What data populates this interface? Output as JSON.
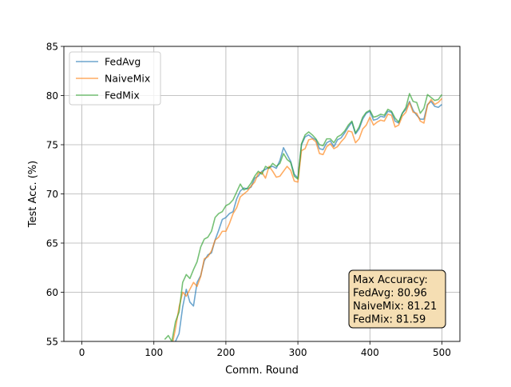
{
  "chart_data": {
    "type": "line",
    "title": "",
    "xlabel": "Comm. Round",
    "ylabel": "Test Acc. (%)",
    "xlim": [
      -25,
      525
    ],
    "ylim": [
      55,
      85
    ],
    "xticks": [
      0,
      100,
      200,
      300,
      400,
      500
    ],
    "yticks": [
      55,
      60,
      65,
      70,
      75,
      80,
      85
    ],
    "grid": true,
    "legend_position": "upper-left",
    "series": [
      {
        "name": "FedAvg",
        "color": "#1f77b4",
        "points": [
          [
            125,
            53.5
          ],
          [
            130,
            55.0
          ],
          [
            135,
            55.8
          ],
          [
            140,
            58.5
          ],
          [
            145,
            60.3
          ],
          [
            150,
            59.0
          ],
          [
            155,
            58.6
          ],
          [
            160,
            61.0
          ],
          [
            165,
            61.7
          ],
          [
            170,
            63.2
          ],
          [
            175,
            63.8
          ],
          [
            180,
            64.0
          ],
          [
            185,
            65.3
          ],
          [
            190,
            66.3
          ],
          [
            195,
            67.4
          ],
          [
            200,
            67.6
          ],
          [
            205,
            68.0
          ],
          [
            210,
            68.2
          ],
          [
            215,
            69.5
          ],
          [
            220,
            70.3
          ],
          [
            225,
            70.6
          ],
          [
            230,
            70.5
          ],
          [
            235,
            70.7
          ],
          [
            240,
            71.6
          ],
          [
            245,
            71.8
          ],
          [
            250,
            72.3
          ],
          [
            255,
            72.5
          ],
          [
            260,
            72.7
          ],
          [
            265,
            72.8
          ],
          [
            270,
            72.6
          ],
          [
            275,
            73.4
          ],
          [
            280,
            74.7
          ],
          [
            285,
            74.0
          ],
          [
            290,
            73.3
          ],
          [
            295,
            72.0
          ],
          [
            300,
            71.6
          ],
          [
            305,
            75.0
          ],
          [
            310,
            75.8
          ],
          [
            315,
            76.0
          ],
          [
            320,
            75.7
          ],
          [
            325,
            75.5
          ],
          [
            330,
            74.6
          ],
          [
            335,
            74.5
          ],
          [
            340,
            75.2
          ],
          [
            345,
            75.4
          ],
          [
            350,
            74.8
          ],
          [
            355,
            75.5
          ],
          [
            360,
            75.7
          ],
          [
            365,
            76.2
          ],
          [
            370,
            76.8
          ],
          [
            375,
            77.3
          ],
          [
            380,
            76.1
          ],
          [
            385,
            76.6
          ],
          [
            390,
            77.6
          ],
          [
            395,
            78.2
          ],
          [
            400,
            78.4
          ],
          [
            405,
            77.5
          ],
          [
            410,
            77.6
          ],
          [
            415,
            77.9
          ],
          [
            420,
            77.8
          ],
          [
            425,
            78.4
          ],
          [
            430,
            78.3
          ],
          [
            435,
            77.4
          ],
          [
            440,
            77.2
          ],
          [
            445,
            78.2
          ],
          [
            450,
            78.6
          ],
          [
            455,
            79.4
          ],
          [
            460,
            78.5
          ],
          [
            465,
            78.0
          ],
          [
            470,
            77.6
          ],
          [
            475,
            77.6
          ],
          [
            480,
            79.1
          ],
          [
            485,
            79.4
          ],
          [
            490,
            78.9
          ],
          [
            495,
            78.8
          ],
          [
            500,
            79.1
          ]
        ]
      },
      {
        "name": "NaiveMix",
        "color": "#ff7f0e",
        "points": [
          [
            125,
            54.5
          ],
          [
            130,
            56.3
          ],
          [
            135,
            58.5
          ],
          [
            140,
            60.0
          ],
          [
            145,
            59.6
          ],
          [
            150,
            60.3
          ],
          [
            155,
            61.0
          ],
          [
            160,
            60.6
          ],
          [
            165,
            61.6
          ],
          [
            170,
            63.4
          ],
          [
            175,
            63.6
          ],
          [
            180,
            64.2
          ],
          [
            185,
            65.3
          ],
          [
            190,
            65.6
          ],
          [
            195,
            66.2
          ],
          [
            200,
            66.2
          ],
          [
            205,
            67.0
          ],
          [
            210,
            68.0
          ],
          [
            215,
            68.6
          ],
          [
            220,
            69.7
          ],
          [
            225,
            70.0
          ],
          [
            230,
            70.3
          ],
          [
            235,
            70.8
          ],
          [
            240,
            71.2
          ],
          [
            245,
            72.1
          ],
          [
            250,
            72.2
          ],
          [
            255,
            71.6
          ],
          [
            260,
            72.8
          ],
          [
            265,
            72.3
          ],
          [
            270,
            71.7
          ],
          [
            275,
            71.8
          ],
          [
            280,
            72.3
          ],
          [
            285,
            72.8
          ],
          [
            290,
            72.4
          ],
          [
            295,
            71.3
          ],
          [
            300,
            71.2
          ],
          [
            305,
            74.4
          ],
          [
            310,
            74.6
          ],
          [
            315,
            75.5
          ],
          [
            320,
            75.6
          ],
          [
            325,
            75.3
          ],
          [
            330,
            74.1
          ],
          [
            335,
            74.0
          ],
          [
            340,
            74.8
          ],
          [
            345,
            75.1
          ],
          [
            350,
            74.6
          ],
          [
            355,
            74.8
          ],
          [
            360,
            75.3
          ],
          [
            365,
            75.7
          ],
          [
            370,
            76.4
          ],
          [
            375,
            76.3
          ],
          [
            380,
            75.2
          ],
          [
            385,
            75.6
          ],
          [
            390,
            76.6
          ],
          [
            395,
            77.0
          ],
          [
            400,
            77.8
          ],
          [
            405,
            77.0
          ],
          [
            410,
            77.3
          ],
          [
            415,
            77.5
          ],
          [
            420,
            77.4
          ],
          [
            425,
            78.1
          ],
          [
            430,
            78.0
          ],
          [
            435,
            76.8
          ],
          [
            440,
            77.0
          ],
          [
            445,
            77.9
          ],
          [
            450,
            78.3
          ],
          [
            455,
            79.3
          ],
          [
            460,
            78.3
          ],
          [
            465,
            78.2
          ],
          [
            470,
            77.4
          ],
          [
            475,
            77.2
          ],
          [
            480,
            79.0
          ],
          [
            485,
            79.6
          ],
          [
            490,
            79.1
          ],
          [
            495,
            79.3
          ],
          [
            500,
            79.7
          ]
        ]
      },
      {
        "name": "FedMix",
        "color": "#2ca02c",
        "points": [
          [
            115,
            55.2
          ],
          [
            120,
            55.6
          ],
          [
            125,
            55.0
          ],
          [
            130,
            57.0
          ],
          [
            135,
            58.0
          ],
          [
            140,
            61.0
          ],
          [
            145,
            61.8
          ],
          [
            150,
            61.4
          ],
          [
            155,
            62.3
          ],
          [
            160,
            63.1
          ],
          [
            165,
            64.6
          ],
          [
            170,
            65.4
          ],
          [
            175,
            65.6
          ],
          [
            180,
            66.2
          ],
          [
            185,
            67.6
          ],
          [
            190,
            68.0
          ],
          [
            195,
            68.2
          ],
          [
            200,
            68.8
          ],
          [
            205,
            69.0
          ],
          [
            210,
            69.4
          ],
          [
            215,
            70.2
          ],
          [
            220,
            71.0
          ],
          [
            225,
            70.4
          ],
          [
            230,
            70.6
          ],
          [
            235,
            71.1
          ],
          [
            240,
            71.8
          ],
          [
            245,
            72.3
          ],
          [
            250,
            72.0
          ],
          [
            255,
            72.8
          ],
          [
            260,
            72.6
          ],
          [
            265,
            73.1
          ],
          [
            270,
            72.8
          ],
          [
            275,
            73.1
          ],
          [
            280,
            74.1
          ],
          [
            285,
            73.5
          ],
          [
            290,
            73.2
          ],
          [
            295,
            71.8
          ],
          [
            300,
            71.5
          ],
          [
            305,
            75.1
          ],
          [
            310,
            76.0
          ],
          [
            315,
            76.3
          ],
          [
            320,
            76.0
          ],
          [
            325,
            75.6
          ],
          [
            330,
            75.0
          ],
          [
            335,
            74.9
          ],
          [
            340,
            75.6
          ],
          [
            345,
            75.6
          ],
          [
            350,
            75.2
          ],
          [
            355,
            75.8
          ],
          [
            360,
            76.0
          ],
          [
            365,
            76.4
          ],
          [
            370,
            77.0
          ],
          [
            375,
            77.4
          ],
          [
            380,
            76.2
          ],
          [
            385,
            76.8
          ],
          [
            390,
            77.8
          ],
          [
            395,
            78.3
          ],
          [
            400,
            78.5
          ],
          [
            405,
            77.8
          ],
          [
            410,
            77.9
          ],
          [
            415,
            78.1
          ],
          [
            420,
            78.0
          ],
          [
            425,
            78.6
          ],
          [
            430,
            78.4
          ],
          [
            435,
            77.7
          ],
          [
            440,
            77.3
          ],
          [
            445,
            78.2
          ],
          [
            450,
            78.8
          ],
          [
            455,
            80.2
          ],
          [
            460,
            79.4
          ],
          [
            465,
            79.3
          ],
          [
            470,
            78.2
          ],
          [
            475,
            78.7
          ],
          [
            480,
            80.1
          ],
          [
            485,
            79.8
          ],
          [
            490,
            79.5
          ],
          [
            495,
            79.6
          ],
          [
            500,
            80.1
          ]
        ]
      }
    ],
    "annotation": {
      "lines": [
        "Max Accuracy:",
        "FedAvg: 80.96",
        "NaiveMix: 81.21",
        "FedMix: 81.59"
      ],
      "background_color": "#f5deb3"
    }
  }
}
